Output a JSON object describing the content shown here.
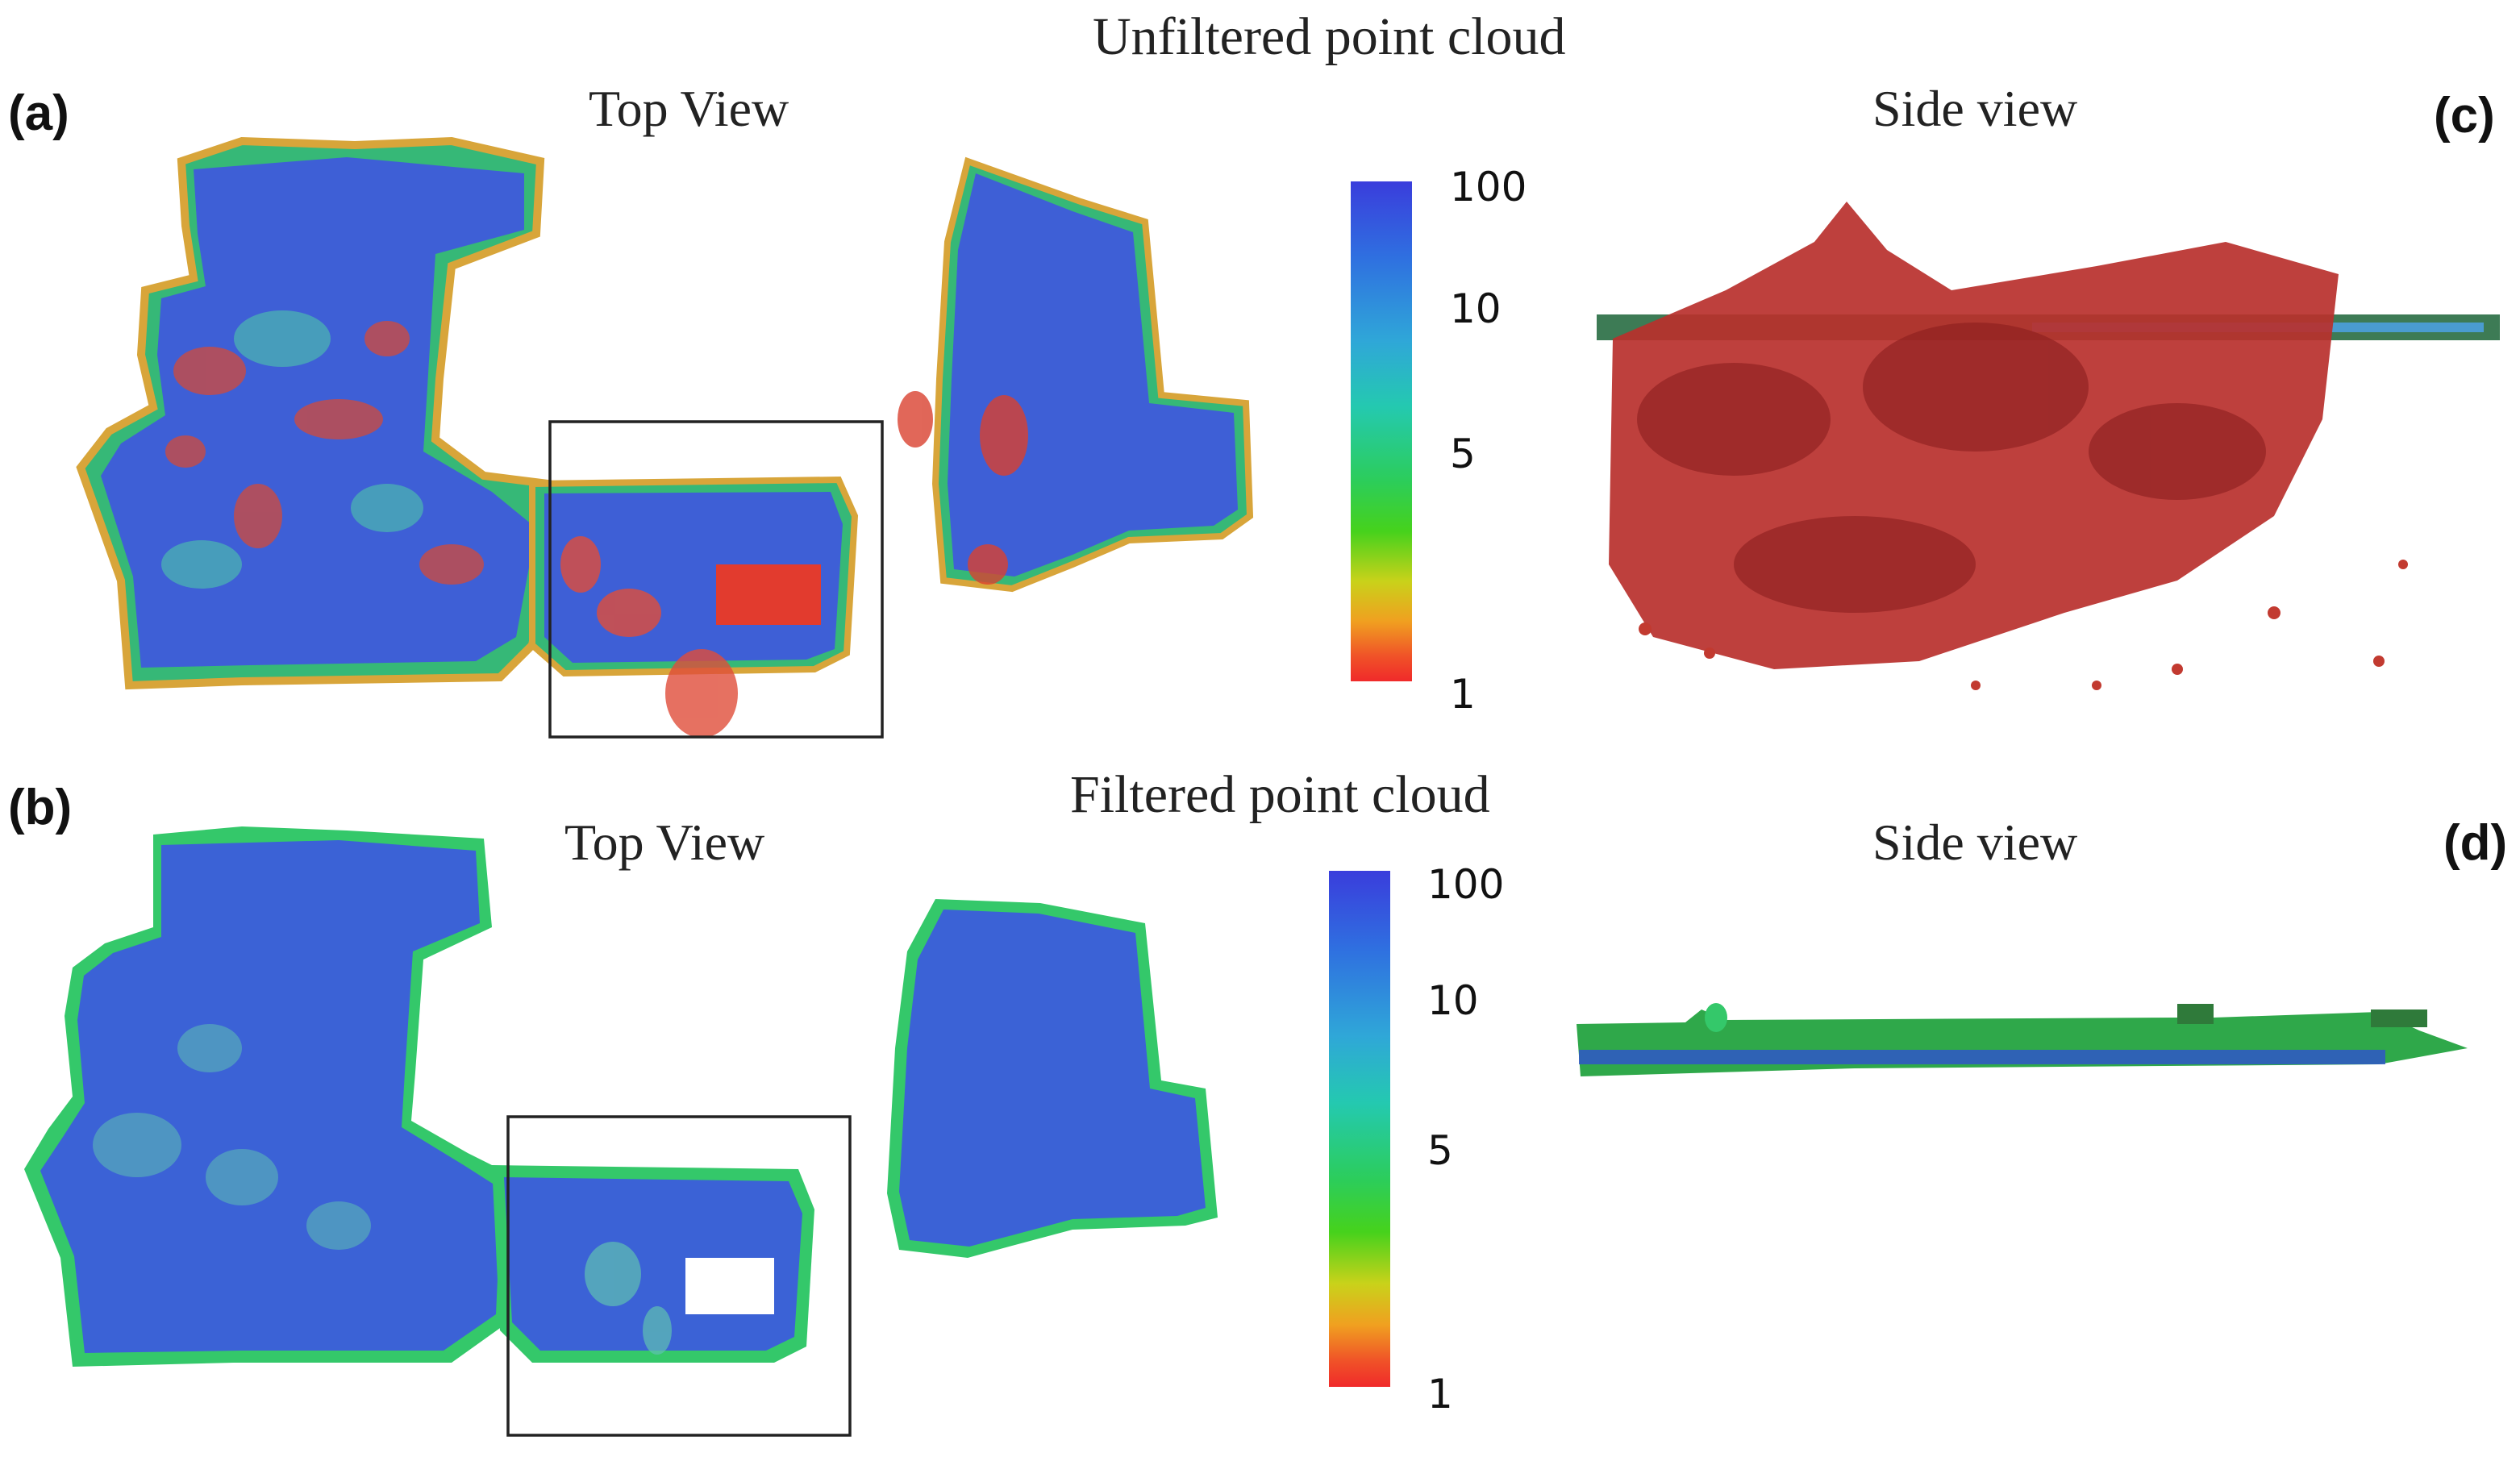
{
  "figure": {
    "top_row_title": "Unfiltered point cloud",
    "bottom_row_title": "Filtered point cloud",
    "panels": {
      "a": {
        "label": "(a)",
        "view": "Top View"
      },
      "b": {
        "label": "(b)",
        "view": "Top View"
      },
      "c": {
        "label": "(c)",
        "view": "Side view"
      },
      "d": {
        "label": "(d)",
        "view": "Side view"
      }
    },
    "colorbar": {
      "ticks": [
        "100",
        "10",
        "5",
        "1"
      ],
      "colors": {
        "high": "#3a3ddc",
        "mid": "#2ccd5a",
        "low": "#f02a2a"
      }
    },
    "highlight_box_color": "#222222"
  }
}
